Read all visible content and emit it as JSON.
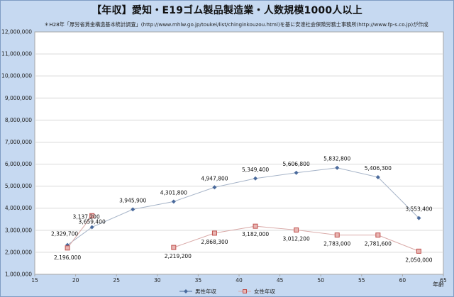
{
  "chart_data": {
    "type": "line",
    "title": "【年収】愛知・E19ゴム製品製造業・人数規模1000人以上",
    "note": "＊H28年「厚労省賃金構造基本統計調査」(http://www.mhlw.go.jp/toukei/list/chinginkouzou.html)を基に安達社会保険労務士事務所(http://www.fp-s.co.jp)が作成",
    "xlabel": "年齢",
    "ylabel": "",
    "xlim": [
      15,
      65
    ],
    "ylim": [
      1000000,
      12000000
    ],
    "x_ticks": [
      15,
      20,
      25,
      30,
      35,
      40,
      45,
      50,
      55,
      60,
      65
    ],
    "y_ticks": [
      1000000,
      2000000,
      3000000,
      4000000,
      5000000,
      6000000,
      7000000,
      8000000,
      9000000,
      10000000,
      11000000,
      12000000
    ],
    "grid": "horizontal",
    "legend_position": "bottom",
    "series": [
      {
        "name": "男性年収",
        "color": "#4a6a9c",
        "marker": "diamond",
        "points": [
          {
            "x": 19,
            "y": 2329700,
            "label": "2,329,700"
          },
          {
            "x": 22,
            "y": 3137200,
            "label": "3,137,200"
          },
          {
            "x": 27,
            "y": 3945900,
            "label": "3,945,900"
          },
          {
            "x": 32,
            "y": 4301800,
            "label": "4,301,800"
          },
          {
            "x": 37,
            "y": 4947800,
            "label": "4,947,800"
          },
          {
            "x": 42,
            "y": 5349400,
            "label": "5,349,400"
          },
          {
            "x": 47,
            "y": 5606800,
            "label": "5,606,800"
          },
          {
            "x": 52,
            "y": 5832800,
            "label": "5,832,800"
          },
          {
            "x": 57,
            "y": 5406300,
            "label": "5,406,300"
          },
          {
            "x": 62,
            "y": 3553400,
            "label": "3,553,400"
          }
        ]
      },
      {
        "name": "女性年収",
        "color": "#d9a9a7",
        "marker": "square",
        "segments": [
          [
            {
              "x": 19,
              "y": 2196000,
              "label": "2,196,000"
            },
            {
              "x": 22,
              "y": 3659400,
              "label": "3,659,400"
            }
          ],
          [
            {
              "x": 32,
              "y": 2219200,
              "label": "2,219,200"
            },
            {
              "x": 37,
              "y": 2868300,
              "label": "2,868,300"
            },
            {
              "x": 42,
              "y": 3182000,
              "label": "3,182,000"
            },
            {
              "x": 47,
              "y": 3012200,
              "label": "3,012,200"
            },
            {
              "x": 52,
              "y": 2783000,
              "label": "2,783,000"
            },
            {
              "x": 57,
              "y": 2781600,
              "label": "2,781,600"
            },
            {
              "x": 62,
              "y": 2050000,
              "label": "2,050,000"
            }
          ]
        ]
      }
    ]
  }
}
